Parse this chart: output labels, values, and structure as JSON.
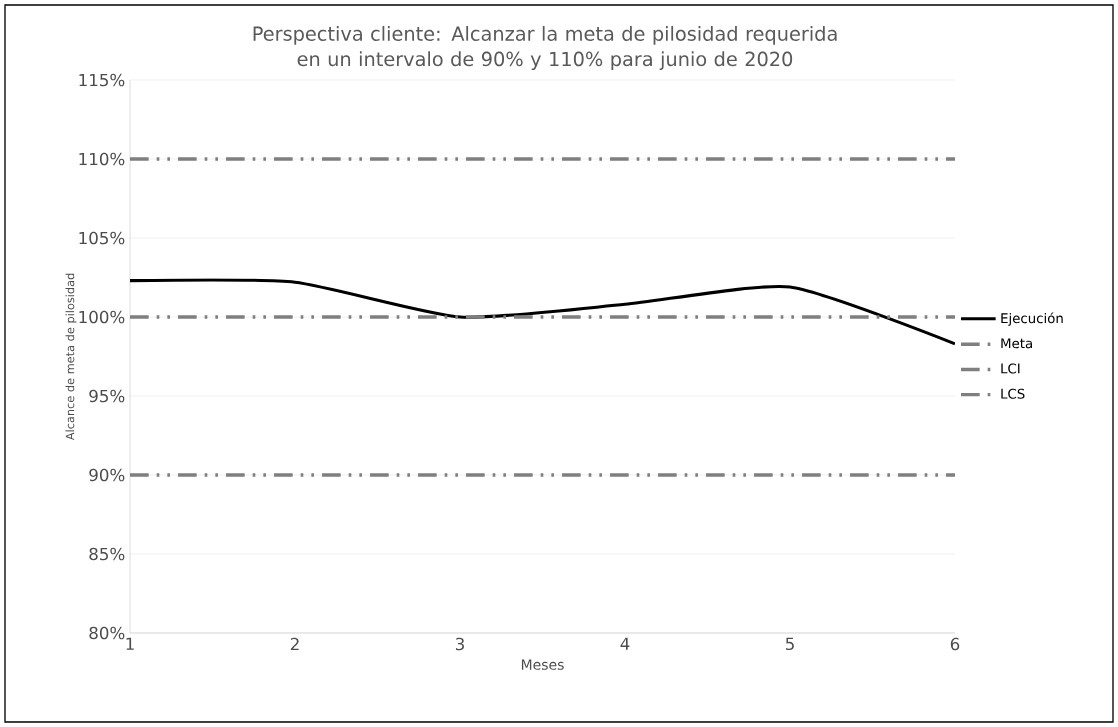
{
  "chart_data": {
    "type": "line",
    "title": "Perspectiva cliente: Alcanzar la meta de pilosidad requerida en un intervalo de 90% y 110% para junio de 2020",
    "xlabel": "Meses",
    "ylabel": "Alcance de meta de pilosidad",
    "categories": [
      "1",
      "2",
      "3",
      "4",
      "5",
      "6"
    ],
    "series": [
      {
        "name": "Ejecución",
        "color": "#000000",
        "line_style": "solid",
        "values": [
          102.3,
          102.2,
          100.0,
          100.8,
          101.9,
          98.3
        ]
      },
      {
        "name": "Meta",
        "color": "#7f7f7f",
        "line_style": "dashed",
        "values": [
          100,
          100,
          100,
          100,
          100,
          100
        ]
      },
      {
        "name": "LCI",
        "color": "#7f7f7f",
        "line_style": "dashed",
        "values": [
          90,
          90,
          90,
          90,
          90,
          90
        ]
      },
      {
        "name": "LCS",
        "color": "#7f7f7f",
        "line_style": "dashed",
        "values": [
          110,
          110,
          110,
          110,
          110,
          110
        ]
      }
    ],
    "ylim": [
      80,
      115
    ],
    "yticks": [
      {
        "value": 80,
        "label": "80%"
      },
      {
        "value": 85,
        "label": "85%"
      },
      {
        "value": 90,
        "label": "90%"
      },
      {
        "value": 95,
        "label": "95%"
      },
      {
        "value": 100,
        "label": "100%"
      },
      {
        "value": 105,
        "label": "105%"
      },
      {
        "value": 110,
        "label": "110%"
      },
      {
        "value": 115,
        "label": "115%"
      }
    ],
    "grid": "y",
    "legend": "right"
  }
}
